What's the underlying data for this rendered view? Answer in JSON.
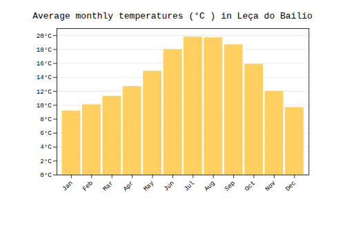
{
  "chart_data": {
    "type": "bar",
    "title": "Average monthly temperatures (°C ) in Leça do Bailio",
    "categories": [
      "Jan",
      "Feb",
      "Mar",
      "Apr",
      "May",
      "Jun",
      "Jul",
      "Aug",
      "Sep",
      "Oct",
      "Nov",
      "Dec"
    ],
    "values": [
      9.2,
      10.1,
      11.3,
      12.7,
      14.9,
      18.0,
      19.8,
      19.7,
      18.7,
      15.9,
      12.0,
      9.7
    ],
    "color": "#FFD060",
    "ylim": [
      0,
      21
    ],
    "yticks": [
      {
        "value": 0,
        "label": "0°C"
      },
      {
        "value": 2,
        "label": "2°C"
      },
      {
        "value": 4,
        "label": "4°C"
      },
      {
        "value": 6,
        "label": "6°C"
      },
      {
        "value": 8,
        "label": "8°C"
      },
      {
        "value": 10,
        "label": "10°C"
      },
      {
        "value": 12,
        "label": "12°C"
      },
      {
        "value": 14,
        "label": "14°C"
      },
      {
        "value": 16,
        "label": "16°C"
      },
      {
        "value": 18,
        "label": "18°C"
      },
      {
        "value": 20,
        "label": "20°C"
      }
    ],
    "grid": true
  }
}
